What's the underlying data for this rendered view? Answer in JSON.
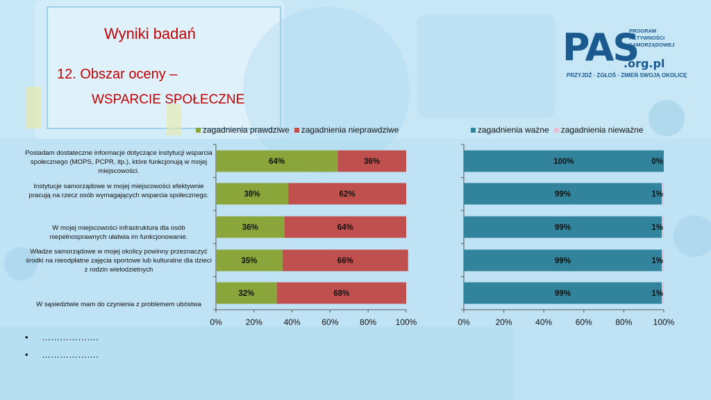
{
  "header": {
    "title": "Wyniki badań",
    "subtitle_line1": "12. Obszar oceny –",
    "subtitle_line2": "WSPARCIE SPOŁECZNE"
  },
  "logo": {
    "main": "PAS",
    "domain": ".org.pl",
    "tagline": [
      "PROGRAM",
      "AKTYWNOŚCI",
      "SAMORZĄDOWEJ"
    ],
    "slogan": "PRZYJDŹ · ZGŁOŚ · ZMIEŃ SWOJĄ OKOLICĘ"
  },
  "bullets": [
    "……………….",
    "………………."
  ],
  "colors": {
    "green": "#8aa63a",
    "red": "#c0504d",
    "teal": "#31849b",
    "pink": "#e6c1d6"
  },
  "chart_data": [
    {
      "type": "bar",
      "orientation": "horizontal",
      "stacked": true,
      "categories": [
        "Posiadam dostateczne informacje  dotyczące instytucji wsparcia społecznego (MOPS, PCPR, itp.), które funkcjonują w mojej miejscowości.",
        "Instytucje samorządowe w mojej miejscowości efektywnie pracują na rzecz osób wymagających wsparcia społecznego.",
        "W mojej miejscowości infrastruktura dla osób niepełnosprawnych ułatwia im funkcjonowanie.",
        "Władze samorządowe w mojej okolicy powinny przeznaczyć środki na nieodpłatne zajęcia sportowe lub kulturalne dla dzieci z rodzin wielodzietnych",
        "W sąsiedztwie mam do czynienia z problemem ubóstwa"
      ],
      "series": [
        {
          "name": "zagadnienia prawdziwe",
          "color": "#8aa63a",
          "values": [
            64,
            38,
            36,
            35,
            32
          ],
          "labels": [
            "64%",
            "38%",
            "36%",
            "35%",
            "32%"
          ]
        },
        {
          "name": "zagadnienia nieprawdziwe",
          "color": "#c0504d",
          "values": [
            36,
            62,
            64,
            66,
            68
          ],
          "labels": [
            "36%",
            "62%",
            "64%",
            "66%",
            "68%"
          ]
        }
      ],
      "xlim": [
        0,
        100
      ],
      "ticks": [
        "0%",
        "20%",
        "40%",
        "60%",
        "80%",
        "100%"
      ],
      "legend": "top"
    },
    {
      "type": "bar",
      "orientation": "horizontal",
      "stacked": true,
      "series": [
        {
          "name": "zagadnienia ważne",
          "color": "#31849b",
          "values": [
            100,
            99,
            99,
            99,
            99
          ],
          "labels": [
            "100%",
            "99%",
            "99%",
            "99%",
            "99%"
          ]
        },
        {
          "name": "zagadnienia nieważne",
          "color": "#e6c1d6",
          "values": [
            0,
            1,
            1,
            1,
            1
          ],
          "labels": [
            "0%",
            "1%",
            "1%",
            "1%",
            "1%"
          ]
        }
      ],
      "xlim": [
        0,
        100
      ],
      "ticks": [
        "0%",
        "20%",
        "40%",
        "60%",
        "80%",
        "100%"
      ],
      "legend": "top"
    }
  ]
}
